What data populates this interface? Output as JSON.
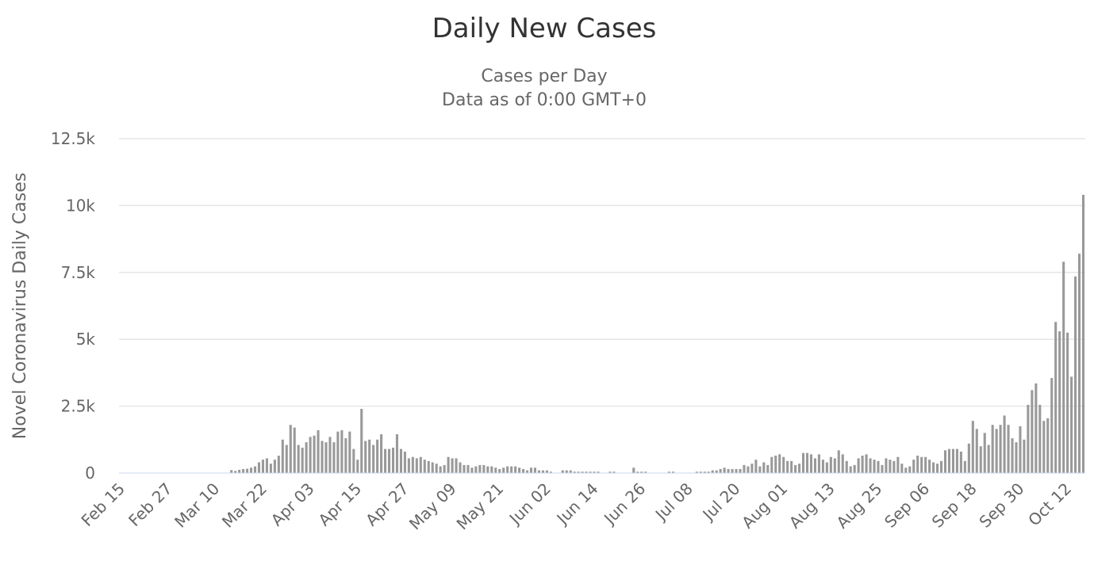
{
  "chart_data": {
    "type": "bar",
    "title": "Daily New Cases",
    "subtitle": [
      "Cases per Day",
      "Data as of 0:00 GMT+0"
    ],
    "xlabel": "",
    "ylabel": "Novel Coronavirus Daily Cases",
    "ylim": [
      0,
      12500
    ],
    "yticks": [
      {
        "value": 0,
        "label": "0"
      },
      {
        "value": 2500,
        "label": "2.5k"
      },
      {
        "value": 5000,
        "label": "5k"
      },
      {
        "value": 7500,
        "label": "7.5k"
      },
      {
        "value": 10000,
        "label": "10k"
      },
      {
        "value": 12500,
        "label": "12.5k"
      }
    ],
    "xticks": [
      "Feb 15",
      "Feb 27",
      "Mar 10",
      "Mar 22",
      "Apr 03",
      "Apr 15",
      "Apr 27",
      "May 09",
      "May 21",
      "Jun 02",
      "Jun 14",
      "Jun 26",
      "Jul 08",
      "Jul 20",
      "Aug 01",
      "Aug 13",
      "Aug 25",
      "Sep 06",
      "Sep 18",
      "Sep 30",
      "Oct 12"
    ],
    "grid": true,
    "legend": "none",
    "colors": {
      "bar": "#999999",
      "grid": "#e6e6e6",
      "axis": "#ccd6eb"
    },
    "first_date": "Feb 15",
    "values": [
      0,
      0,
      0,
      0,
      0,
      0,
      0,
      0,
      0,
      0,
      0,
      0,
      0,
      0,
      0,
      0,
      0,
      0,
      0,
      0,
      0,
      0,
      0,
      0,
      0,
      0,
      0,
      0,
      110,
      80,
      120,
      150,
      160,
      200,
      250,
      400,
      500,
      550,
      350,
      500,
      650,
      1250,
      1050,
      1800,
      1700,
      1050,
      950,
      1150,
      1350,
      1400,
      1600,
      1200,
      1150,
      1350,
      1150,
      1550,
      1600,
      1300,
      1550,
      900,
      500,
      2400,
      1200,
      1250,
      1050,
      1250,
      1450,
      900,
      900,
      950,
      1450,
      900,
      800,
      550,
      600,
      550,
      600,
      500,
      450,
      400,
      350,
      250,
      300,
      600,
      550,
      550,
      400,
      300,
      300,
      200,
      250,
      300,
      300,
      250,
      250,
      200,
      150,
      200,
      250,
      250,
      250,
      200,
      150,
      100,
      200,
      200,
      100,
      100,
      100,
      50,
      0,
      0,
      100,
      100,
      100,
      50,
      50,
      50,
      50,
      50,
      50,
      50,
      0,
      0,
      50,
      50,
      0,
      0,
      0,
      0,
      200,
      50,
      50,
      50,
      0,
      0,
      0,
      0,
      0,
      50,
      50,
      0,
      0,
      0,
      0,
      0,
      50,
      50,
      50,
      50,
      100,
      100,
      150,
      200,
      150,
      150,
      150,
      150,
      300,
      250,
      350,
      500,
      250,
      400,
      300,
      600,
      650,
      700,
      600,
      450,
      450,
      300,
      350,
      750,
      750,
      700,
      550,
      700,
      500,
      400,
      600,
      550,
      850,
      700,
      450,
      250,
      300,
      550,
      650,
      700,
      550,
      500,
      450,
      300,
      550,
      500,
      450,
      600,
      350,
      200,
      250,
      500,
      650,
      600,
      600,
      500,
      400,
      350,
      450,
      850,
      900,
      900,
      900,
      800,
      450,
      1100,
      1950,
      1650,
      1000,
      1500,
      1050,
      1800,
      1650,
      1800,
      2150,
      1800,
      1300,
      1150,
      1750,
      1250,
      2550,
      3100,
      3350,
      2550,
      1950,
      2050,
      3550,
      5650,
      5300,
      7900,
      5250,
      3600,
      7350,
      8200,
      10400
    ]
  }
}
